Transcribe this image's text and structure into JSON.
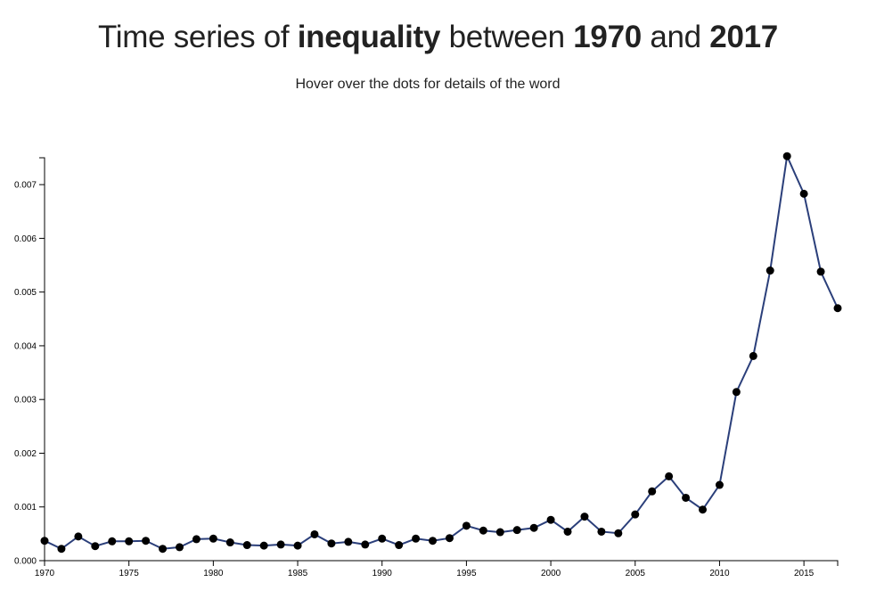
{
  "header": {
    "title_prefix": "Time series of",
    "word": "inequality",
    "title_middle": "between",
    "start_year": "1970",
    "title_joiner": "and",
    "end_year": "2017",
    "subtitle": "Hover over the dots for details of the word"
  },
  "chart_data": {
    "type": "line",
    "title": "Time series of inequality between 1970 and 2017",
    "xlabel": "",
    "ylabel": "",
    "xlim": [
      1970,
      2017
    ],
    "ylim": [
      0,
      0.0075
    ],
    "x_ticks": [
      "1970",
      "1975",
      "1980",
      "1985",
      "1990",
      "1995",
      "2000",
      "2005",
      "2010",
      "2015"
    ],
    "y_ticks": [
      "0.000",
      "0.001",
      "0.002",
      "0.003",
      "0.004",
      "0.005",
      "0.006",
      "0.007"
    ],
    "grid": false,
    "line_color": "#2b3f7a",
    "point_color": "#000000",
    "x": [
      1970,
      1971,
      1972,
      1973,
      1974,
      1975,
      1976,
      1977,
      1978,
      1979,
      1980,
      1981,
      1982,
      1983,
      1984,
      1985,
      1986,
      1987,
      1988,
      1989,
      1990,
      1991,
      1992,
      1993,
      1994,
      1995,
      1996,
      1997,
      1998,
      1999,
      2000,
      2001,
      2002,
      2003,
      2004,
      2005,
      2006,
      2007,
      2008,
      2009,
      2010,
      2011,
      2012,
      2013,
      2014,
      2015,
      2016,
      2017
    ],
    "values": [
      0.00037,
      0.00022,
      0.00045,
      0.00027,
      0.00036,
      0.00036,
      0.00037,
      0.00022,
      0.00025,
      0.0004,
      0.00041,
      0.00034,
      0.00029,
      0.00028,
      0.0003,
      0.00028,
      0.00049,
      0.00032,
      0.00035,
      0.0003,
      0.00041,
      0.00029,
      0.00041,
      0.00037,
      0.00042,
      0.00065,
      0.00056,
      0.00053,
      0.00057,
      0.00061,
      0.00076,
      0.00054,
      0.00082,
      0.00054,
      0.00051,
      0.00086,
      0.00129,
      0.00157,
      0.00117,
      0.00095,
      0.00141,
      0.00314,
      0.00381,
      0.0054,
      0.00753,
      0.00683,
      0.00538,
      0.0047
    ]
  }
}
